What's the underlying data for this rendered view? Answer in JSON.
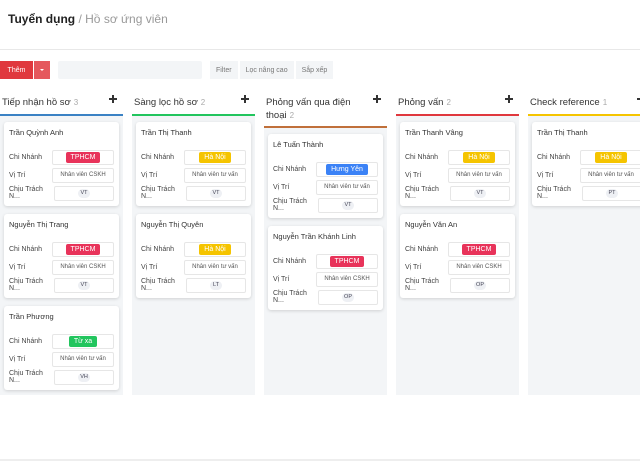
{
  "breadcrumb": {
    "section": "Tuyển dụng",
    "separator": "/",
    "page": "Hồ sơ ứng viên"
  },
  "toolbar": {
    "add": "Thêm",
    "filter": "Filter",
    "advanced_filter": "Lọc nâng cao",
    "sort": "Sắp xếp"
  },
  "field_labels": [
    "Chi Nhánh",
    "Vị Trí",
    "Chịu Trách N..."
  ],
  "columns": [
    {
      "title": "Tiếp nhận hồ sơ",
      "count": 3,
      "color": "#3b82c4",
      "cards": [
        {
          "name": "Trần Quỳnh Anh",
          "branch": "TPHCM",
          "branch_color": "#e8335a",
          "position": "Nhân viên CSKH",
          "owner": "VT"
        },
        {
          "name": "Nguyễn Thị Trang",
          "branch": "TPHCM",
          "branch_color": "#e8335a",
          "position": "Nhân viên CSKH",
          "owner": "VT"
        },
        {
          "name": "Trần Phương",
          "branch": "Từ xa",
          "branch_color": "#22c55e",
          "position": "Nhân viên tư vấn",
          "owner": "VH"
        }
      ]
    },
    {
      "title": "Sàng lọc hồ sơ",
      "count": 2,
      "color": "#22c55e",
      "cards": [
        {
          "name": "Trần Thị Thanh",
          "branch": "Hà Nội",
          "branch_color": "#f5c400",
          "position": "Nhân viên tư vấn",
          "owner": "VT"
        },
        {
          "name": "Nguyễn Thị Quyên",
          "branch": "Hà Nội",
          "branch_color": "#f5c400",
          "position": "Nhân viên tư vấn",
          "owner": "LT"
        }
      ]
    },
    {
      "title": "Phỏng vấn qua điện thoại",
      "count": 2,
      "color": "#c0703a",
      "cards": [
        {
          "name": "Lê Tuấn Thành",
          "branch": "Hưng Yên",
          "branch_color": "#3b82f6",
          "position": "Nhân viên tư vấn",
          "owner": "VT"
        },
        {
          "name": "Nguyễn Trần Khánh Linh",
          "branch": "TPHCM",
          "branch_color": "#e8335a",
          "position": "Nhân viên CSKH",
          "owner": "OP"
        }
      ]
    },
    {
      "title": "Phỏng vấn",
      "count": 2,
      "color": "#e0383e",
      "cards": [
        {
          "name": "Trần Thanh Vâng",
          "branch": "Hà Nội",
          "branch_color": "#f5c400",
          "position": "Nhân viên tư vấn",
          "owner": "VT"
        },
        {
          "name": "Nguyễn Văn An",
          "branch": "TPHCM",
          "branch_color": "#e8335a",
          "position": "Nhân viên CSKH",
          "owner": "OP"
        }
      ]
    },
    {
      "title": "Check reference",
      "count": 1,
      "color": "#f5c400",
      "cards": [
        {
          "name": "Trần Thị Thanh",
          "branch": "Hà Nội",
          "branch_color": "#f5c400",
          "position": "Nhân viên tư vấn",
          "owner": "PT"
        }
      ]
    }
  ]
}
